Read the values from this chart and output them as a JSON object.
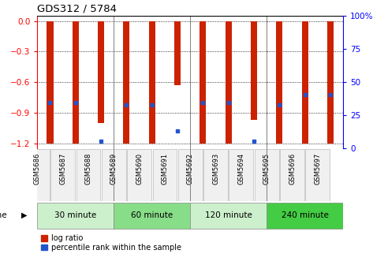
{
  "title": "GDS312 / 5784",
  "samples": [
    "GSM5686",
    "GSM5687",
    "GSM5688",
    "GSM5689",
    "GSM5690",
    "GSM5691",
    "GSM5692",
    "GSM5693",
    "GSM5694",
    "GSM5695",
    "GSM5696",
    "GSM5697"
  ],
  "log_ratios": [
    -1.2,
    -1.2,
    -1.0,
    -1.2,
    -1.2,
    -0.63,
    -1.2,
    -1.2,
    -0.97,
    -1.2,
    -1.2,
    -1.2
  ],
  "percentile_positions": [
    -0.8,
    -0.8,
    -1.18,
    -0.82,
    -0.82,
    -1.08,
    -0.8,
    -0.8,
    -1.18,
    -0.82,
    -0.72,
    -0.72
  ],
  "bar_color": "#cc2200",
  "dot_color": "#2255cc",
  "groups": [
    {
      "label": "30 minute",
      "start": 0,
      "end": 3,
      "color": "#ccf0cc"
    },
    {
      "label": "60 minute",
      "start": 3,
      "end": 6,
      "color": "#88dd88"
    },
    {
      "label": "120 minute",
      "start": 6,
      "end": 9,
      "color": "#ccf0cc"
    },
    {
      "label": "240 minute",
      "start": 9,
      "end": 12,
      "color": "#44cc44"
    }
  ],
  "ylim": [
    -1.25,
    0.05
  ],
  "yticks": [
    0.0,
    -0.3,
    -0.6,
    -0.9,
    -1.2
  ],
  "right_yticks": [
    0,
    25,
    50,
    75,
    100
  ],
  "right_ytick_labels": [
    "0",
    "25",
    "50",
    "75",
    "100%"
  ],
  "background_color": "#ffffff",
  "bar_width": 0.25,
  "group_dividers": [
    3,
    6,
    9
  ]
}
